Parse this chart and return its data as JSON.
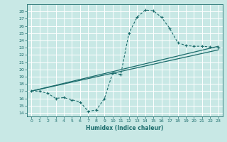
{
  "xlabel": "Humidex (Indice chaleur)",
  "bg_color": "#c8e8e5",
  "line_color": "#1a6b6b",
  "grid_color": "#ffffff",
  "xlim": [
    -0.5,
    23.5
  ],
  "ylim": [
    13.5,
    29.0
  ],
  "yticks": [
    14,
    15,
    16,
    17,
    18,
    19,
    20,
    21,
    22,
    23,
    24,
    25,
    26,
    27,
    28
  ],
  "xticks": [
    0,
    1,
    2,
    3,
    4,
    5,
    6,
    7,
    8,
    9,
    10,
    11,
    12,
    13,
    14,
    15,
    16,
    17,
    18,
    19,
    20,
    21,
    22,
    23
  ],
  "curve1_x": [
    0,
    1,
    2,
    3,
    4,
    5,
    6,
    7,
    8,
    9,
    10,
    11,
    12,
    13,
    14,
    15,
    16,
    17,
    18,
    19,
    20,
    21,
    22,
    23
  ],
  "curve1_y": [
    17.0,
    17.0,
    16.7,
    16.0,
    16.1,
    15.8,
    15.5,
    14.2,
    14.4,
    16.0,
    19.5,
    19.3,
    25.0,
    27.2,
    28.2,
    28.1,
    27.2,
    25.7,
    23.7,
    23.3,
    23.2,
    23.2,
    23.1,
    23.0
  ],
  "curve2_x": [
    0,
    23
  ],
  "curve2_y": [
    17.0,
    23.2
  ],
  "curve3_x": [
    0,
    23
  ],
  "curve3_y": [
    17.0,
    22.7
  ],
  "xlabel_fontsize": 5.5,
  "tick_fontsize": 4.5
}
